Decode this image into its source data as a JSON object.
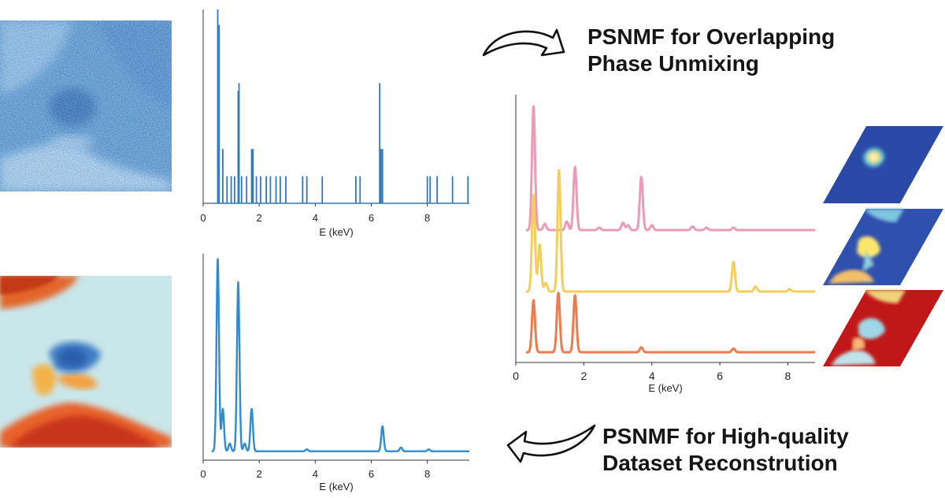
{
  "captions": {
    "top": [
      "PSNMF for Overlapping",
      "Phase Unmixing"
    ],
    "bottom": [
      "PSNMF for High-quality",
      "Dataset Reconstrution"
    ]
  },
  "axis_label": "E (keV)",
  "colors": {
    "raw_blue": "#2f78c0",
    "spectrum_blue": "#2f8bd0",
    "pink": "#ec9ab8",
    "yellow": "#f5ce5a",
    "orange": "#ee7b4e",
    "map_blue": "#2b4aa8",
    "map_red": "#c01818",
    "arrow_stroke": "#111111"
  },
  "icons": [
    "curved-arrow-icon",
    "curved-arrow-icon"
  ],
  "chart_data": [
    {
      "type": "line",
      "name": "raw",
      "xlim": [
        0,
        9.5
      ],
      "xticks": [
        "0",
        "2",
        "4",
        "6",
        "8"
      ],
      "xlabel": "E (keV)",
      "peaks": [
        [
          0.52,
          1.0
        ],
        [
          0.57,
          0.92
        ],
        [
          0.7,
          0.28
        ],
        [
          0.85,
          0.14
        ],
        [
          1.0,
          0.14
        ],
        [
          1.12,
          0.14
        ],
        [
          1.25,
          0.58
        ],
        [
          1.28,
          0.62
        ],
        [
          1.37,
          0.14
        ],
        [
          1.55,
          0.14
        ],
        [
          1.73,
          0.28
        ],
        [
          1.78,
          0.28
        ],
        [
          1.9,
          0.14
        ],
        [
          2.05,
          0.14
        ],
        [
          2.25,
          0.14
        ],
        [
          2.4,
          0.14
        ],
        [
          2.6,
          0.14
        ],
        [
          2.75,
          0.14
        ],
        [
          2.95,
          0.14
        ],
        [
          3.55,
          0.14
        ],
        [
          3.7,
          0.14
        ],
        [
          4.25,
          0.14
        ],
        [
          5.45,
          0.14
        ],
        [
          5.6,
          0.14
        ],
        [
          6.3,
          0.62
        ],
        [
          6.35,
          0.28
        ],
        [
          6.4,
          0.28
        ],
        [
          8.0,
          0.14
        ],
        [
          8.1,
          0.14
        ],
        [
          8.35,
          0.14
        ],
        [
          8.9,
          0.14
        ],
        [
          9.45,
          0.14
        ]
      ]
    },
    {
      "type": "line",
      "name": "reconstructed",
      "xlim": [
        0,
        9.5
      ],
      "xticks": [
        "0",
        "2",
        "4",
        "6",
        "8"
      ],
      "xlabel": "E (keV)",
      "baseline": 0.03,
      "peaks": [
        [
          0.52,
          1.0
        ],
        [
          0.7,
          0.22
        ],
        [
          0.95,
          0.04
        ],
        [
          1.25,
          0.88
        ],
        [
          1.48,
          0.04
        ],
        [
          1.73,
          0.22
        ],
        [
          3.7,
          0.01
        ],
        [
          6.4,
          0.13
        ],
        [
          7.06,
          0.02
        ],
        [
          8.05,
          0.01
        ]
      ]
    },
    {
      "type": "line",
      "name": "components",
      "xlim": [
        0,
        8.8
      ],
      "xticks": [
        "0",
        "2",
        "4",
        "6",
        "8"
      ],
      "xlabel": "E (keV)",
      "series": [
        {
          "color": "#ec9ab8",
          "peaks": [
            [
              0.52,
              1.0
            ],
            [
              0.85,
              0.05
            ],
            [
              1.5,
              0.07
            ],
            [
              1.74,
              0.51
            ],
            [
              2.45,
              0.02
            ],
            [
              3.15,
              0.06
            ],
            [
              3.3,
              0.04
            ],
            [
              3.69,
              0.43
            ],
            [
              4.0,
              0.04
            ],
            [
              5.2,
              0.03
            ],
            [
              5.6,
              0.02
            ],
            [
              6.4,
              0.02
            ]
          ]
        },
        {
          "color": "#f5ce5a",
          "peaks": [
            [
              0.52,
              0.78
            ],
            [
              0.7,
              0.38
            ],
            [
              0.88,
              0.07
            ],
            [
              1.27,
              0.98
            ],
            [
              6.4,
              0.24
            ],
            [
              7.05,
              0.04
            ],
            [
              8.05,
              0.02
            ]
          ]
        },
        {
          "color": "#ee7b4e",
          "peaks": [
            [
              0.52,
              0.42
            ],
            [
              1.25,
              0.48
            ],
            [
              1.74,
              0.46
            ],
            [
              3.69,
              0.04
            ],
            [
              6.4,
              0.03
            ]
          ]
        }
      ]
    }
  ]
}
